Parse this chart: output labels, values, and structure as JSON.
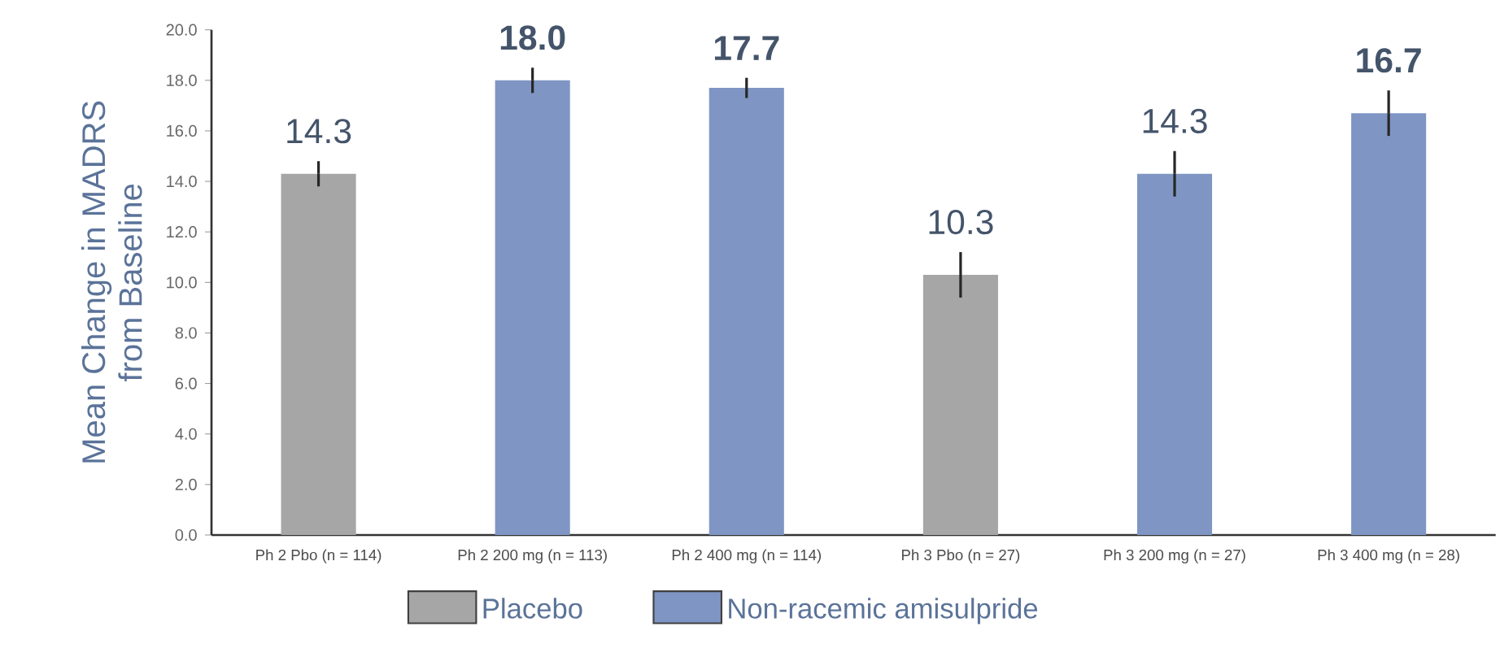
{
  "chart_data": {
    "type": "bar",
    "ylabel": "Mean Change in MADRS\nfrom Baseline",
    "categories": [
      "Ph 2 Pbo (n = 114)",
      "Ph 2 200 mg (n = 113)",
      "Ph 2 400 mg (n = 114)",
      "Ph 3 Pbo (n = 27)",
      "Ph 3 200 mg (n = 27)",
      "Ph 3 400 mg (n = 28)"
    ],
    "series": [
      {
        "name": "Placebo",
        "color": "#a6a6a6",
        "values": [
          14.3,
          null,
          null,
          10.3,
          null,
          null
        ],
        "errors": [
          0.5,
          null,
          null,
          0.9,
          null,
          null
        ],
        "value_labels": [
          "14.3",
          null,
          null,
          "10.3",
          null,
          null
        ]
      },
      {
        "name": "Non-racemic amisulpride",
        "color": "#7f96c4",
        "values": [
          null,
          18.0,
          17.7,
          null,
          14.3,
          16.7
        ],
        "errors": [
          null,
          0.5,
          0.4,
          null,
          0.9,
          0.9
        ],
        "value_labels": [
          null,
          "**18.0**",
          "**17.7**",
          null,
          "14.3",
          "**16.7**"
        ]
      }
    ],
    "ylim": [
      0,
      20
    ],
    "yticks": [
      {
        "value": 0,
        "label": "0.0"
      },
      {
        "value": 2,
        "label": "2.0"
      },
      {
        "value": 4,
        "label": "4.0"
      },
      {
        "value": 6,
        "label": "6.0"
      },
      {
        "value": 8,
        "label": "8.0"
      },
      {
        "value": 10,
        "label": "10.0"
      },
      {
        "value": 12,
        "label": "12.0"
      },
      {
        "value": 14,
        "label": "14.0"
      },
      {
        "value": 16,
        "label": "16.0"
      },
      {
        "value": 18,
        "label": "18.0"
      },
      {
        "value": 20,
        "label": "20.0"
      }
    ],
    "grid": false,
    "legend": "bottom"
  }
}
